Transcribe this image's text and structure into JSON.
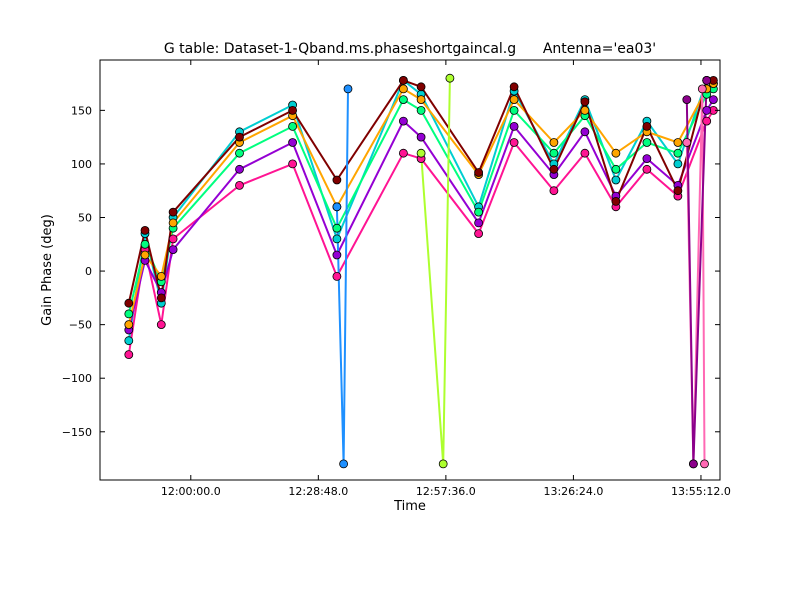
{
  "chart_data": {
    "type": "line",
    "title": "G table: Dataset-1-Qband.ms.phaseshortgaincal.g      Antenna='ea03'",
    "xlabel": "Time",
    "ylabel": "Gain Phase (deg)",
    "xlim": [
      "11:39:30",
      "13:59:30"
    ],
    "ylim": [
      -195,
      197
    ],
    "x_ticks": [
      "12:00:00.0",
      "12:28:48.0",
      "12:57:36.0",
      "13:26:24.0",
      "13:55:12.0"
    ],
    "y_ticks": [
      150,
      100,
      50,
      0,
      -50,
      -100,
      -150
    ],
    "y_tick_labels": [
      "150",
      "100",
      "50",
      "0",
      "−50",
      "−100",
      "−150"
    ],
    "grid": false,
    "legend": "none",
    "marker": "circle",
    "series_colors": [
      "#00ced1",
      "#ff1493",
      "#9400d3",
      "#00ff7f",
      "#ffa500",
      "#800000",
      "#1e90ff",
      "#adff2f",
      "#ff69b4",
      "#8b008b",
      "#20b2aa",
      "#ff4500",
      "#7cfc00",
      "#87ceeb",
      "#da70d6",
      "#2e8b57",
      "#d2691e",
      "#4682b4",
      "#ffd700",
      "#00bfff",
      "#b22222",
      "#32cd32",
      "#ba55d3",
      "#66cdaa"
    ],
    "series": [
      {
        "x": [
          "11:46:00",
          "11:49:40",
          "11:53:20",
          "11:56:00",
          "12:11:00",
          "12:23:00",
          "12:33:00",
          "12:48:00",
          "12:52:00",
          "13:05:00",
          "13:13:00",
          "13:22:00",
          "13:29:00",
          "13:36:00",
          "13:43:00",
          "13:50:00",
          "13:56:30",
          "13:58:00"
        ],
        "y": [
          -65,
          35,
          -30,
          50,
          130,
          155,
          30,
          178,
          165,
          60,
          168,
          100,
          160,
          85,
          140,
          100,
          178,
          175
        ]
      },
      {
        "x": [
          "11:46:00",
          "11:49:40",
          "11:53:20",
          "11:56:00",
          "12:11:00",
          "12:23:00",
          "12:33:00",
          "12:48:00",
          "12:52:00",
          "13:05:00",
          "13:13:00",
          "13:22:00",
          "13:29:00",
          "13:36:00",
          "13:43:00",
          "13:50:00",
          "13:56:30",
          "13:58:00"
        ],
        "y": [
          -78,
          20,
          -50,
          30,
          80,
          100,
          -5,
          110,
          105,
          35,
          120,
          75,
          110,
          60,
          95,
          70,
          140,
          150
        ]
      },
      {
        "x": [
          "11:46:00",
          "11:49:40",
          "11:53:20",
          "11:56:00",
          "12:11:00",
          "12:23:00",
          "12:33:00",
          "12:48:00",
          "12:52:00",
          "13:05:00",
          "13:13:00",
          "13:22:00",
          "13:29:00",
          "13:36:00",
          "13:43:00",
          "13:50:00",
          "13:56:30",
          "13:58:00"
        ],
        "y": [
          -55,
          10,
          -20,
          20,
          95,
          120,
          15,
          140,
          125,
          45,
          135,
          90,
          130,
          70,
          105,
          80,
          150,
          160
        ]
      },
      {
        "x": [
          "11:46:00",
          "11:49:40",
          "11:53:20",
          "11:56:00",
          "12:11:00",
          "12:23:00",
          "12:33:00",
          "12:48:00",
          "12:52:00",
          "13:05:00",
          "13:13:00",
          "13:22:00",
          "13:29:00",
          "13:36:00",
          "13:43:00",
          "13:50:00",
          "13:56:30",
          "13:58:00"
        ],
        "y": [
          -40,
          25,
          -10,
          40,
          110,
          135,
          40,
          160,
          150,
          55,
          150,
          110,
          145,
          95,
          120,
          110,
          165,
          170
        ]
      },
      {
        "x": [
          "11:46:00",
          "11:49:40",
          "11:53:20",
          "11:56:00",
          "12:11:00",
          "12:23:00",
          "12:33:00",
          "12:48:00",
          "12:52:00",
          "13:05:00",
          "13:13:00",
          "13:22:00",
          "13:29:00",
          "13:36:00",
          "13:43:00",
          "13:50:00",
          "13:56:30",
          "13:58:00"
        ],
        "y": [
          -50,
          15,
          -5,
          45,
          120,
          145,
          60,
          170,
          160,
          90,
          160,
          120,
          150,
          110,
          130,
          120,
          170,
          175
        ]
      },
      {
        "x": [
          "11:46:00",
          "11:49:40",
          "11:53:20",
          "11:56:00",
          "12:11:00",
          "12:23:00",
          "12:33:00",
          "12:48:00",
          "12:52:00",
          "13:05:00",
          "13:13:00",
          "13:22:00",
          "13:29:00",
          "13:36:00",
          "13:43:00",
          "13:50:00",
          "13:56:30",
          "13:58:00"
        ],
        "y": [
          -30,
          38,
          -25,
          55,
          125,
          150,
          85,
          178,
          172,
          92,
          172,
          95,
          158,
          65,
          135,
          75,
          178,
          178
        ]
      },
      {
        "x": [
          "12:33:00",
          "12:34:30",
          "12:35:30"
        ],
        "y": [
          60,
          -180,
          170
        ]
      },
      {
        "x": [
          "12:52:00",
          "12:57:00",
          "12:58:30"
        ],
        "y": [
          110,
          -180,
          180
        ]
      },
      {
        "x": [
          "13:52:00",
          "13:53:30",
          "13:55:30",
          "13:56:00"
        ],
        "y": [
          120,
          -180,
          170,
          -180
        ]
      },
      {
        "x": [
          "13:52:00",
          "13:53:30",
          "13:56:30"
        ],
        "y": [
          160,
          -180,
          178
        ]
      }
    ]
  }
}
